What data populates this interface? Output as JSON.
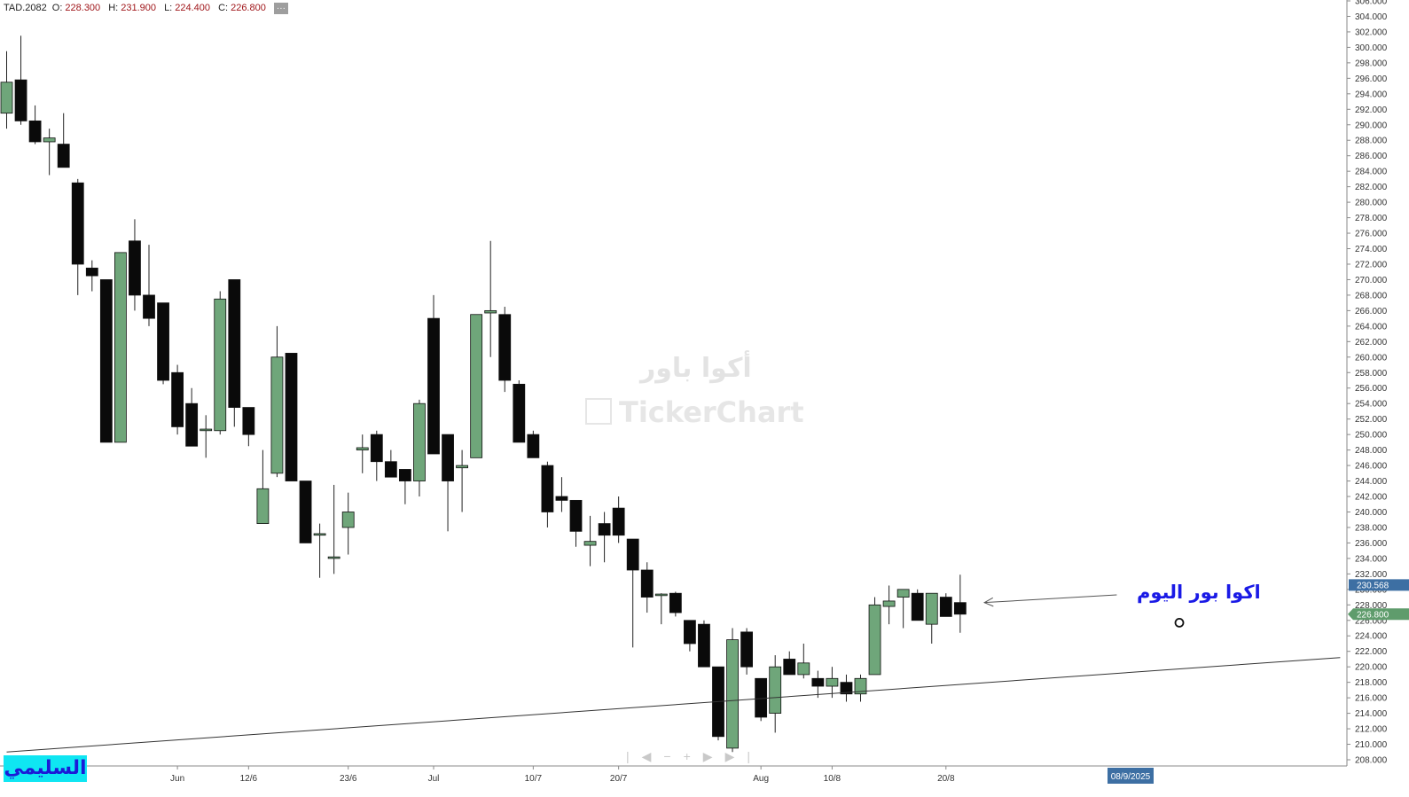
{
  "header": {
    "symbol": "TAD.2082",
    "open_label": "O:",
    "open": "228.300",
    "high_label": "H:",
    "high": "231.900",
    "low_label": "L:",
    "low": "224.400",
    "close_label": "C:",
    "close": "226.800",
    "more_label": "···"
  },
  "watermark": {
    "arabic_name": "أكوا باور",
    "brand": "TickerChart"
  },
  "author_tag": "السليمي",
  "annotation": "اكوا بور اليوم",
  "navigation": [
    "|",
    "◀",
    "−",
    "+",
    "▶",
    "▶|"
  ],
  "colors": {
    "up": "#6fa67a",
    "down": "#0a0a0a",
    "trendline": "#333333",
    "arrow": "#555555",
    "price_badge_up": "#5f9c6c",
    "price_badge_ref": "#3d6fa3",
    "date_badge": "#3d6fa3"
  },
  "chart_data": {
    "type": "candlestick",
    "symbol": "TAD.2082",
    "ylim": [
      207,
      306
    ],
    "y_ticks": [
      "208.000",
      "210.000",
      "212.000",
      "214.000",
      "216.000",
      "218.000",
      "220.000",
      "222.000",
      "224.000",
      "226.000",
      "228.000",
      "230.000",
      "232.000",
      "234.000",
      "236.000",
      "238.000",
      "240.000",
      "242.000",
      "244.000",
      "246.000",
      "248.000",
      "250.000",
      "252.000",
      "254.000",
      "256.000",
      "258.000",
      "260.000",
      "262.000",
      "264.000",
      "266.000",
      "268.000",
      "270.000",
      "272.000",
      "274.000",
      "276.000",
      "278.000",
      "280.000",
      "282.000",
      "284.000",
      "286.000",
      "288.000",
      "290.000",
      "292.000",
      "294.000",
      "296.000",
      "298.000",
      "300.000",
      "302.000",
      "304.000",
      "306.000"
    ],
    "x_labels": [
      {
        "label": "Jun",
        "index": 12
      },
      {
        "label": "12/6",
        "index": 17
      },
      {
        "label": "23/6",
        "index": 24
      },
      {
        "label": "Jul",
        "index": 30
      },
      {
        "label": "10/7",
        "index": 37
      },
      {
        "label": "20/7",
        "index": 43
      },
      {
        "label": "Aug",
        "index": 53
      },
      {
        "label": "10/8",
        "index": 58
      },
      {
        "label": "20/8",
        "index": 66
      }
    ],
    "future_date_label": "08/9/2025",
    "candles": [
      {
        "o": 291.5,
        "h": 299.5,
        "l": 289.5,
        "c": 295.5
      },
      {
        "o": 295.8,
        "h": 301.5,
        "l": 290.0,
        "c": 290.5
      },
      {
        "o": 290.5,
        "h": 292.5,
        "l": 287.5,
        "c": 287.8
      },
      {
        "o": 287.8,
        "h": 289.5,
        "l": 283.5,
        "c": 288.3
      },
      {
        "o": 287.5,
        "h": 291.5,
        "l": 284.5,
        "c": 284.5
      },
      {
        "o": 282.5,
        "h": 283.0,
        "l": 268.0,
        "c": 272.0
      },
      {
        "o": 271.5,
        "h": 272.5,
        "l": 268.5,
        "c": 270.5
      },
      {
        "o": 270.0,
        "h": 270.0,
        "l": 249.0,
        "c": 249.0
      },
      {
        "o": 249.0,
        "h": 273.5,
        "l": 249.0,
        "c": 273.5
      },
      {
        "o": 275.0,
        "h": 277.8,
        "l": 266.0,
        "c": 268.0
      },
      {
        "o": 268.0,
        "h": 274.5,
        "l": 264.0,
        "c": 265.0
      },
      {
        "o": 267.0,
        "h": 267.0,
        "l": 256.5,
        "c": 257.0
      },
      {
        "o": 258.0,
        "h": 259.0,
        "l": 250.0,
        "c": 251.0
      },
      {
        "o": 254.0,
        "h": 256.0,
        "l": 248.5,
        "c": 248.5
      },
      {
        "o": 250.5,
        "h": 252.5,
        "l": 247.0,
        "c": 250.7
      },
      {
        "o": 250.5,
        "h": 268.5,
        "l": 250.0,
        "c": 267.5
      },
      {
        "o": 270.0,
        "h": 270.0,
        "l": 251.0,
        "c": 253.5
      },
      {
        "o": 253.5,
        "h": 253.5,
        "l": 248.5,
        "c": 250.0
      },
      {
        "o": 238.5,
        "h": 248.0,
        "l": 238.5,
        "c": 243.0
      },
      {
        "o": 245.0,
        "h": 264.0,
        "l": 244.5,
        "c": 260.0
      },
      {
        "o": 260.5,
        "h": 260.5,
        "l": 244.0,
        "c": 244.0
      },
      {
        "o": 244.0,
        "h": 244.0,
        "l": 236.0,
        "c": 236.0
      },
      {
        "o": 237.0,
        "h": 238.5,
        "l": 231.5,
        "c": 237.2
      },
      {
        "o": 234.0,
        "h": 243.5,
        "l": 232.0,
        "c": 234.2
      },
      {
        "o": 238.0,
        "h": 242.5,
        "l": 234.5,
        "c": 240.0
      },
      {
        "o": 248.0,
        "h": 250.0,
        "l": 245.0,
        "c": 248.3
      },
      {
        "o": 250.0,
        "h": 250.5,
        "l": 244.0,
        "c": 246.5
      },
      {
        "o": 246.5,
        "h": 248.0,
        "l": 244.5,
        "c": 244.5
      },
      {
        "o": 245.5,
        "h": 245.5,
        "l": 241.0,
        "c": 244.0
      },
      {
        "o": 244.0,
        "h": 254.5,
        "l": 242.0,
        "c": 254.0
      },
      {
        "o": 265.0,
        "h": 268.0,
        "l": 247.5,
        "c": 247.5
      },
      {
        "o": 250.0,
        "h": 250.0,
        "l": 237.5,
        "c": 244.0
      },
      {
        "o": 245.7,
        "h": 248.0,
        "l": 240.0,
        "c": 246.0
      },
      {
        "o": 247.0,
        "h": 265.5,
        "l": 247.0,
        "c": 265.5
      },
      {
        "o": 265.7,
        "h": 275.0,
        "l": 260.0,
        "c": 266.0
      },
      {
        "o": 265.5,
        "h": 266.5,
        "l": 255.5,
        "c": 257.0
      },
      {
        "o": 256.5,
        "h": 257.0,
        "l": 249.0,
        "c": 249.0
      },
      {
        "o": 250.0,
        "h": 250.5,
        "l": 247.0,
        "c": 247.0
      },
      {
        "o": 246.0,
        "h": 246.5,
        "l": 238.0,
        "c": 240.0
      },
      {
        "o": 242.0,
        "h": 244.5,
        "l": 240.0,
        "c": 241.5
      },
      {
        "o": 241.5,
        "h": 241.5,
        "l": 235.5,
        "c": 237.5
      },
      {
        "o": 235.7,
        "h": 239.5,
        "l": 233.0,
        "c": 236.2
      },
      {
        "o": 238.5,
        "h": 240.0,
        "l": 233.5,
        "c": 237.0
      },
      {
        "o": 240.5,
        "h": 242.0,
        "l": 236.0,
        "c": 237.0
      },
      {
        "o": 236.5,
        "h": 236.5,
        "l": 222.5,
        "c": 232.5
      },
      {
        "o": 232.5,
        "h": 233.5,
        "l": 227.0,
        "c": 229.0
      },
      {
        "o": 229.2,
        "h": 229.5,
        "l": 225.5,
        "c": 229.4
      },
      {
        "o": 229.5,
        "h": 229.7,
        "l": 226.5,
        "c": 227.0
      },
      {
        "o": 226.0,
        "h": 226.0,
        "l": 222.0,
        "c": 223.0
      },
      {
        "o": 225.5,
        "h": 226.0,
        "l": 220.0,
        "c": 220.0
      },
      {
        "o": 220.0,
        "h": 220.0,
        "l": 210.5,
        "c": 211.0
      },
      {
        "o": 209.5,
        "h": 225.0,
        "l": 209.0,
        "c": 223.5
      },
      {
        "o": 224.5,
        "h": 225.0,
        "l": 219.0,
        "c": 220.0
      },
      {
        "o": 218.5,
        "h": 218.5,
        "l": 213.0,
        "c": 213.5
      },
      {
        "o": 214.0,
        "h": 221.5,
        "l": 211.5,
        "c": 220.0
      },
      {
        "o": 221.0,
        "h": 222.0,
        "l": 219.0,
        "c": 219.0
      },
      {
        "o": 219.0,
        "h": 223.0,
        "l": 218.5,
        "c": 220.5
      },
      {
        "o": 218.5,
        "h": 219.5,
        "l": 216.0,
        "c": 217.5
      },
      {
        "o": 217.5,
        "h": 220.0,
        "l": 216.0,
        "c": 218.5
      },
      {
        "o": 218.0,
        "h": 219.0,
        "l": 215.5,
        "c": 216.5
      },
      {
        "o": 216.5,
        "h": 219.0,
        "l": 215.5,
        "c": 218.5
      },
      {
        "o": 219.0,
        "h": 229.0,
        "l": 219.0,
        "c": 228.0
      },
      {
        "o": 227.8,
        "h": 230.5,
        "l": 225.5,
        "c": 228.5
      },
      {
        "o": 229.0,
        "h": 230.0,
        "l": 225.0,
        "c": 230.0
      },
      {
        "o": 229.5,
        "h": 230.0,
        "l": 226.0,
        "c": 226.0
      },
      {
        "o": 225.5,
        "h": 229.5,
        "l": 223.0,
        "c": 229.5
      },
      {
        "o": 229.0,
        "h": 229.5,
        "l": 226.5,
        "c": 226.5
      },
      {
        "o": 228.3,
        "h": 231.9,
        "l": 224.4,
        "c": 226.8
      }
    ],
    "trendline": {
      "from": {
        "index": 0,
        "price": 209.0
      },
      "to": {
        "index": 93.7,
        "price": 221.2
      }
    },
    "arrow": {
      "from": {
        "index": 78,
        "price": 229.3
      },
      "to": {
        "index": 68.7,
        "price": 228.3
      }
    },
    "marker": {
      "index": 82.4,
      "price": 225.7
    },
    "price_badges": [
      {
        "value": "230.568",
        "price": 230.568,
        "kind": "ref"
      },
      {
        "value": "226.800",
        "price": 226.8,
        "kind": "up"
      }
    ],
    "grid": false
  }
}
